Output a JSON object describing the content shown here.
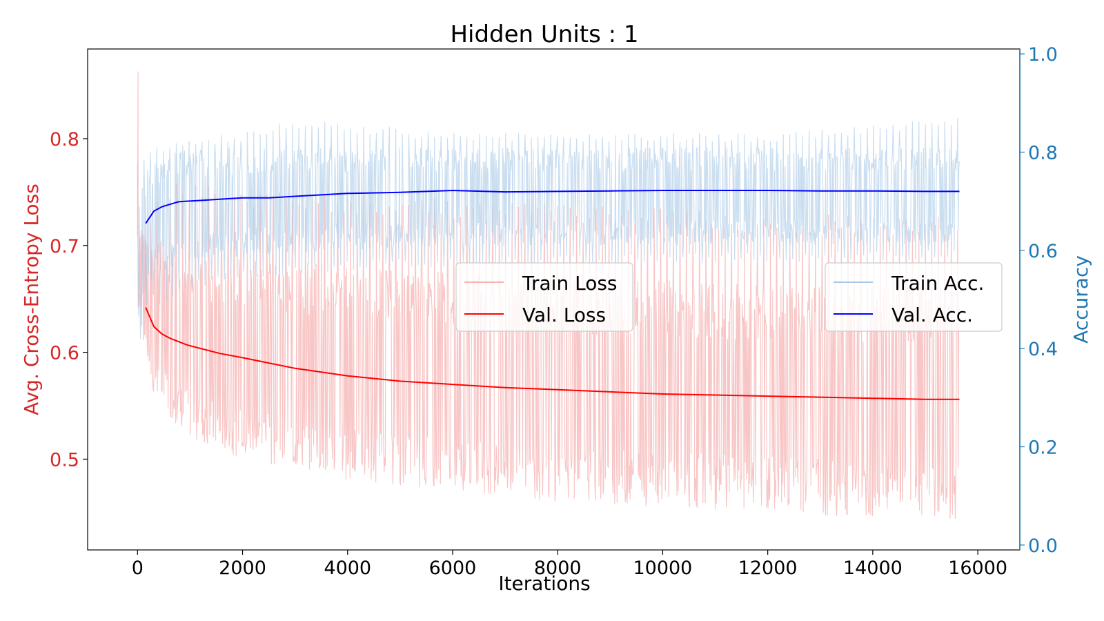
{
  "chart_data": {
    "type": "line",
    "title": "Hidden Units : 1",
    "xlabel": "Iterations",
    "ylabel_left": "Avg. Cross-Entropy Loss",
    "ylabel_right": "Accuracy",
    "xlim": [
      -950,
      16800
    ],
    "ylim_left": [
      0.415,
      0.884
    ],
    "ylim_right": [
      -0.01,
      1.01
    ],
    "xticks": [
      0,
      2000,
      4000,
      6000,
      8000,
      10000,
      12000,
      14000,
      16000
    ],
    "xtick_labels": [
      "0",
      "2000",
      "4000",
      "6000",
      "8000",
      "10000",
      "12000",
      "14000",
      "16000"
    ],
    "yticks_left": [
      0.5,
      0.6,
      0.7,
      0.8
    ],
    "ytick_labels_left": [
      "0.5",
      "0.6",
      "0.7",
      "0.8"
    ],
    "yticks_right": [
      0.0,
      0.2,
      0.4,
      0.6,
      0.8,
      1.0
    ],
    "ytick_labels_right": [
      "0.0",
      "0.2",
      "0.4",
      "0.6",
      "0.8",
      "1.0"
    ],
    "grid": false,
    "colors": {
      "left_axis": "#d62728",
      "right_axis": "#1f77b4",
      "train_loss": "#f08080",
      "val_loss": "#ff0000",
      "train_acc": "#a6c8e6",
      "val_acc": "#0000ff"
    },
    "legends": [
      {
        "placement": "center",
        "entries": [
          "Train Loss",
          "Val. Loss"
        ]
      },
      {
        "placement": "center-right",
        "entries": [
          "Train Acc.",
          "Val. Acc."
        ]
      }
    ],
    "series": [
      {
        "name": "Val. Loss",
        "axis": "left",
        "x": [
          156,
          312,
          469,
          625,
          781,
          938,
          1250,
          1563,
          2000,
          2500,
          3000,
          4000,
          5000,
          6000,
          7000,
          8000,
          9000,
          10000,
          11000,
          12000,
          13000,
          14000,
          15000,
          15650
        ],
        "values": [
          0.642,
          0.624,
          0.617,
          0.613,
          0.61,
          0.607,
          0.603,
          0.599,
          0.595,
          0.59,
          0.585,
          0.578,
          0.573,
          0.57,
          0.567,
          0.565,
          0.563,
          0.561,
          0.56,
          0.559,
          0.558,
          0.557,
          0.556,
          0.556
        ]
      },
      {
        "name": "Val. Acc.",
        "axis": "right",
        "x": [
          156,
          312,
          469,
          625,
          781,
          938,
          1250,
          1563,
          2000,
          2500,
          3000,
          4000,
          5000,
          6000,
          7000,
          8000,
          9000,
          10000,
          11000,
          12000,
          13000,
          14000,
          15000,
          15650
        ],
        "values": [
          0.655,
          0.68,
          0.689,
          0.694,
          0.699,
          0.7,
          0.702,
          0.704,
          0.707,
          0.707,
          0.71,
          0.716,
          0.718,
          0.722,
          0.719,
          0.72,
          0.721,
          0.722,
          0.722,
          0.722,
          0.721,
          0.721,
          0.72,
          0.72
        ]
      },
      {
        "name": "Train Loss",
        "axis": "left",
        "x_range": [
          0,
          15650
        ],
        "peak": 0.863,
        "upper_envelope": {
          "x": [
            0,
            150,
            300,
            600,
            1000,
            2000,
            4000,
            8000,
            12000,
            15650
          ],
          "values": [
            0.72,
            0.71,
            0.71,
            0.7,
            0.69,
            0.69,
            0.68,
            0.67,
            0.665,
            0.665
          ]
        },
        "lower_envelope": {
          "x": [
            0,
            150,
            300,
            600,
            1000,
            2000,
            4000,
            8000,
            12000,
            15650
          ],
          "values": [
            0.64,
            0.6,
            0.56,
            0.54,
            0.52,
            0.5,
            0.48,
            0.46,
            0.45,
            0.44
          ]
        },
        "spikes_high": {
          "x": [
            0,
            500,
            1000,
            2000,
            4000,
            8000,
            12000,
            15650
          ],
          "values": [
            0.72,
            0.76,
            0.76,
            0.75,
            0.75,
            0.74,
            0.73,
            0.73
          ]
        }
      },
      {
        "name": "Train Acc.",
        "axis": "right",
        "x_range": [
          0,
          15650
        ],
        "upper_envelope": {
          "x": [
            0,
            150,
            300,
            600,
            1000,
            2000,
            4000,
            8000,
            12000,
            15650
          ],
          "values": [
            0.72,
            0.76,
            0.78,
            0.8,
            0.81,
            0.81,
            0.81,
            0.81,
            0.81,
            0.81
          ]
        },
        "lower_envelope": {
          "x": [
            0,
            150,
            300,
            600,
            1000,
            2000,
            4000,
            8000,
            12000,
            15650
          ],
          "values": [
            0.45,
            0.5,
            0.54,
            0.56,
            0.57,
            0.59,
            0.6,
            0.61,
            0.61,
            0.61
          ]
        },
        "spikes_high": {
          "x": [
            0,
            500,
            1000,
            2000,
            3000,
            6000,
            12000,
            15650
          ],
          "values": [
            0.78,
            0.82,
            0.83,
            0.84,
            0.87,
            0.84,
            0.84,
            0.87
          ]
        },
        "spikes_low": {
          "x": [
            0,
            200,
            500,
            1000,
            2000,
            4000,
            8000,
            15650
          ],
          "values": [
            0.38,
            0.5,
            0.48,
            0.52,
            0.54,
            0.56,
            0.57,
            0.58
          ]
        }
      }
    ]
  }
}
